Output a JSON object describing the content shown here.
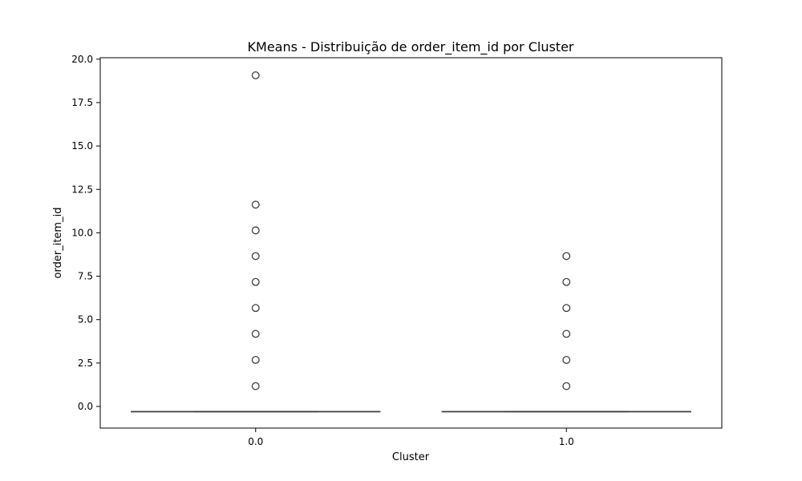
{
  "chart_data": {
    "type": "box",
    "title": "KMeans - Distribuição de order_item_id por Cluster",
    "xlabel": "Cluster",
    "ylabel": "order_item_id",
    "categories": [
      "0.0",
      "1.0"
    ],
    "ylim": [
      -1.3,
      20.0
    ],
    "yticks": [
      0.0,
      2.5,
      5.0,
      7.5,
      10.0,
      12.5,
      15.0,
      17.5,
      20.0
    ],
    "ytick_labels": [
      "0.0",
      "2.5",
      "5.0",
      "7.5",
      "10.0",
      "12.5",
      "15.0",
      "17.5",
      "20.0"
    ],
    "grid": false,
    "boxes": [
      {
        "category": "0.0",
        "q1": -0.3,
        "median": -0.3,
        "q3": -0.3,
        "whisker_low": -0.3,
        "whisker_high": -0.3,
        "outliers": [
          1.17,
          2.68,
          4.18,
          5.67,
          7.17,
          8.66,
          10.14,
          11.62,
          19.07
        ]
      },
      {
        "category": "1.0",
        "q1": -0.3,
        "median": -0.3,
        "q3": -0.3,
        "whisker_low": -0.3,
        "whisker_high": -0.3,
        "outliers": [
          1.17,
          2.68,
          4.18,
          5.67,
          7.17,
          8.66
        ]
      }
    ],
    "colors": {
      "line": "#3f3f3f",
      "axes": "#000000",
      "background": "#ffffff"
    }
  }
}
